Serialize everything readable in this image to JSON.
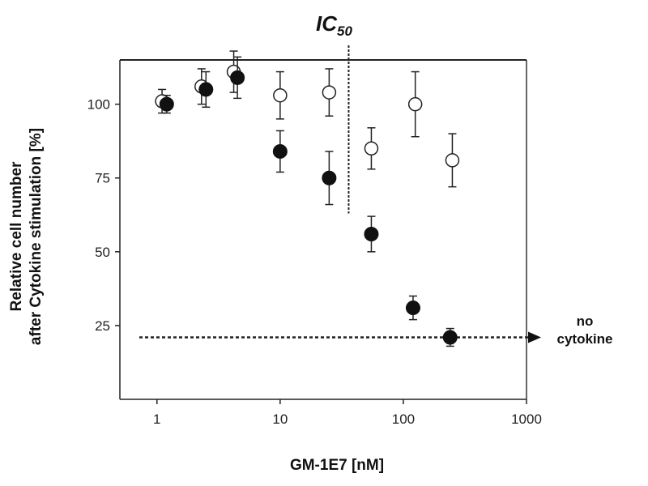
{
  "chart_data": {
    "type": "scatter",
    "xlabel": "GM-1E7 [nM]",
    "ylabel_line1": "Relative cell number",
    "ylabel_line2": "after Cytokine stimulation [%]",
    "x_scale": "log",
    "xlim": [
      0.5,
      1000
    ],
    "ylim": [
      0,
      115
    ],
    "x_ticks": [
      1,
      10,
      100,
      1000
    ],
    "x_tick_labels": [
      "1",
      "10",
      "100",
      "1000"
    ],
    "y_ticks": [
      25,
      50,
      75,
      100
    ],
    "y_tick_labels": [
      "25",
      "50",
      "75",
      "100"
    ],
    "grid": false,
    "series": [
      {
        "marker": "open-circle",
        "points": [
          {
            "x": 1.1,
            "y": 101,
            "err": 4
          },
          {
            "x": 2.3,
            "y": 106,
            "err": 6
          },
          {
            "x": 4.2,
            "y": 111,
            "err": 7
          },
          {
            "x": 10,
            "y": 103,
            "err": 8
          },
          {
            "x": 25,
            "y": 104,
            "err": 8
          },
          {
            "x": 55,
            "y": 85,
            "err": 7
          },
          {
            "x": 125,
            "y": 100,
            "err": 11
          },
          {
            "x": 250,
            "y": 81,
            "err": 9
          }
        ]
      },
      {
        "marker": "filled-circle",
        "points": [
          {
            "x": 1.2,
            "y": 100,
            "err": 3
          },
          {
            "x": 2.5,
            "y": 105,
            "err": 6
          },
          {
            "x": 4.5,
            "y": 109,
            "err": 7
          },
          {
            "x": 10,
            "y": 84,
            "err": 7
          },
          {
            "x": 25,
            "y": 75,
            "err": 9
          },
          {
            "x": 55,
            "y": 56,
            "err": 6
          },
          {
            "x": 120,
            "y": 31,
            "err": 4
          },
          {
            "x": 240,
            "y": 21,
            "err": 3
          }
        ]
      }
    ],
    "annotations": {
      "ic50_main": "IC",
      "ic50_sub": "50",
      "ic50_x": 36,
      "no_cytokine_line1": "no",
      "no_cytokine_line2": "cytokine",
      "no_cytokine_level": 21
    }
  }
}
